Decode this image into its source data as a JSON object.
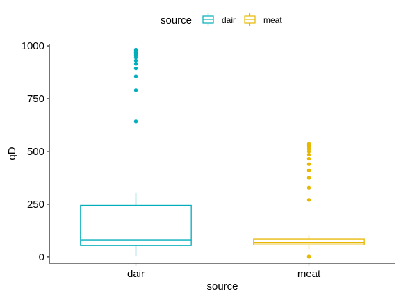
{
  "chart_data": {
    "type": "boxplot",
    "title": "",
    "xlabel": "source",
    "ylabel": "qD",
    "ylim": [
      -30,
      1010
    ],
    "yticks": [
      0,
      250,
      500,
      750,
      1000
    ],
    "categories": [
      "dair",
      "meat"
    ],
    "grid": false,
    "legend": {
      "title": "source",
      "position": "top",
      "entries": [
        "dair",
        "meat"
      ]
    },
    "series": [
      {
        "category": "dair",
        "color": "#00AFBB",
        "whisker_low": 3,
        "q1": 55,
        "median": 80,
        "q3": 245,
        "whisker_high": 303,
        "outliers": [
          642,
          790,
          855,
          893,
          915,
          930,
          945,
          955,
          962,
          968,
          973,
          978,
          982
        ]
      },
      {
        "category": "meat",
        "color": "#E7B800",
        "whisker_low": 35,
        "q1": 58,
        "median": 68,
        "q3": 85,
        "whisker_high": 100,
        "outliers": [
          0,
          3,
          270,
          328,
          375,
          410,
          440,
          465,
          485,
          500,
          512,
          522,
          530,
          536
        ]
      }
    ]
  }
}
